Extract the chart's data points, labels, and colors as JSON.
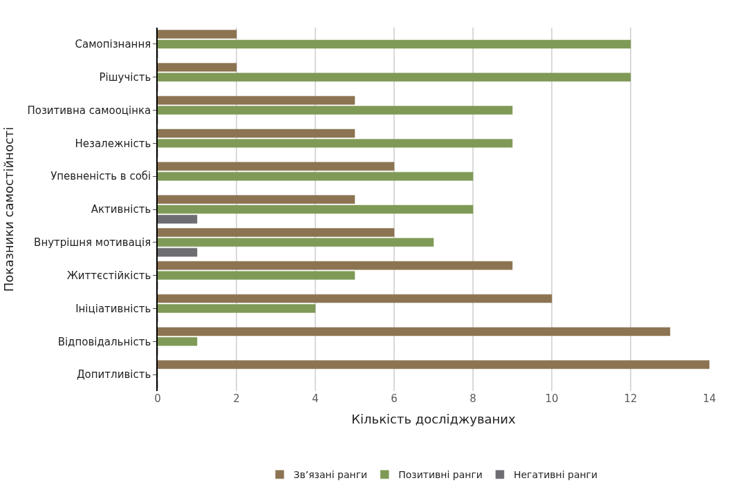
{
  "chart_data": {
    "type": "bar",
    "orientation": "horizontal",
    "xlabel": "Кількість досліджуваних",
    "ylabel": "Показники самостійності",
    "categories": [
      "Самопізнання",
      "Рішучість",
      "Позитивна самооцінка",
      "Незалежність",
      "Упевненість в собі",
      "Активність",
      "Внутрішня мотивація",
      "Життєстійкість",
      "Ініціативність",
      "Відповідальність",
      "Допитливість"
    ],
    "series": [
      {
        "name": "Зв’язані ранги",
        "color": "#8c7452",
        "values": [
          2,
          2,
          5,
          5,
          6,
          5,
          6,
          9,
          10,
          13,
          14
        ]
      },
      {
        "name": "Позитивні ранги",
        "color": "#7f9a56",
        "values": [
          12,
          12,
          9,
          9,
          8,
          8,
          7,
          5,
          4,
          1,
          0
        ]
      },
      {
        "name": "Негативні ранги",
        "color": "#6d6d72",
        "values": [
          0,
          0,
          0,
          0,
          0,
          1,
          1,
          0,
          0,
          0,
          0
        ]
      }
    ],
    "xlim": [
      0,
      14
    ],
    "xticks": [
      0,
      2,
      4,
      6,
      8,
      10,
      12,
      14
    ],
    "grid": "x",
    "legend": "bottom"
  }
}
